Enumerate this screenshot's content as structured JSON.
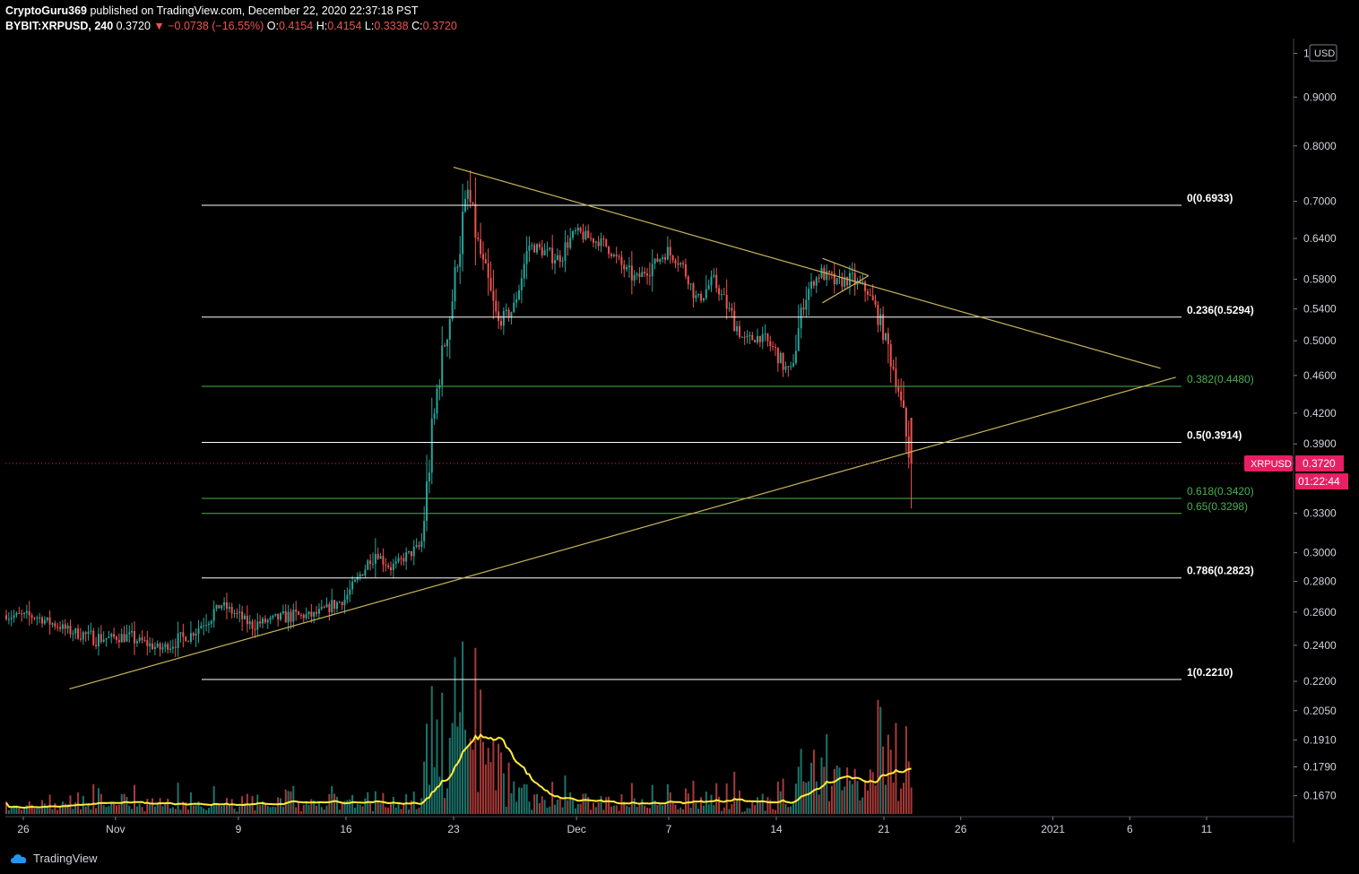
{
  "header": {
    "author": "CryptoGuru369",
    "published_text": "published on TradingView.com, December 22, 2020 22:37:18 PST",
    "symbol": "BYBIT:XRPUSD, 240",
    "last": "0.3720",
    "change": "−0.0738 (−16.55%)",
    "open_label": "O:",
    "open": "0.4154",
    "high_label": "H:",
    "high": "0.4154",
    "low_label": "L:",
    "low": "0.3338",
    "close_label": "C:",
    "close": "0.3720"
  },
  "footer": {
    "brand": "TradingView"
  },
  "colors": {
    "bull": "#26a69a",
    "bear": "#ef5350",
    "trendline": "#c8b45a",
    "fib_white": "#ffffff",
    "fib_green": "#4caf50",
    "volume_ma": "#ffeb3b",
    "price_badge": "#e91e63"
  },
  "chart_data": {
    "type": "candlestick",
    "symbol": "XRPUSD",
    "interval": "240",
    "currency": "USD",
    "y_scale": "log",
    "last_price": "0.3720",
    "countdown": "01:22:44",
    "y_ticks": [
      "1",
      "0.9000",
      "0.8000",
      "0.7000",
      "0.6400",
      "0.5800",
      "0.5400",
      "0.5000",
      "0.4600",
      "0.4200",
      "0.3900",
      "0.3300",
      "0.3000",
      "0.2800",
      "0.2600",
      "0.2400",
      "0.2200",
      "0.2050",
      "0.1910",
      "0.1790",
      "0.1670"
    ],
    "x_ticks": [
      "26",
      "Nov",
      "9",
      "16",
      "23",
      "Dec",
      "7",
      "14",
      "21",
      "26",
      "2021",
      "6",
      "11"
    ],
    "fib_levels": [
      {
        "label": "0(0.6933)",
        "value": 0.6933,
        "color": "white"
      },
      {
        "label": "0.236(0.5294)",
        "value": 0.5294,
        "color": "white"
      },
      {
        "label": "0.382(0.4480)",
        "value": 0.448,
        "color": "green"
      },
      {
        "label": "0.5(0.3914)",
        "value": 0.3914,
        "color": "white"
      },
      {
        "label": "0.618(0.3420)",
        "value": 0.342,
        "color": "green"
      },
      {
        "label": "0.65(0.3298)",
        "value": 0.3298,
        "color": "green"
      },
      {
        "label": "0.786(0.2823)",
        "value": 0.2823,
        "color": "white"
      },
      {
        "label": "1(0.2210)",
        "value": 0.221,
        "color": "white"
      }
    ],
    "price_path": [
      [
        "2020-10-25",
        0.258
      ],
      [
        "2020-10-27",
        0.257
      ],
      [
        "2020-10-29",
        0.249
      ],
      [
        "2020-10-31",
        0.244
      ],
      [
        "2020-11-02",
        0.245
      ],
      [
        "2020-11-04",
        0.238
      ],
      [
        "2020-11-06",
        0.246
      ],
      [
        "2020-11-08",
        0.265
      ],
      [
        "2020-11-10",
        0.252
      ],
      [
        "2020-11-12",
        0.257
      ],
      [
        "2020-11-14",
        0.258
      ],
      [
        "2020-11-16",
        0.268
      ],
      [
        "2020-11-18",
        0.301
      ],
      [
        "2020-11-19",
        0.289
      ],
      [
        "2020-11-21",
        0.305
      ],
      [
        "2020-11-22",
        0.44
      ],
      [
        "2020-11-23",
        0.55
      ],
      [
        "2020-11-24",
        0.72
      ],
      [
        "2020-11-25",
        0.6
      ],
      [
        "2020-11-26",
        0.52
      ],
      [
        "2020-11-27",
        0.54
      ],
      [
        "2020-11-28",
        0.63
      ],
      [
        "2020-11-30",
        0.61
      ],
      [
        "2020-12-01",
        0.65
      ],
      [
        "2020-12-03",
        0.63
      ],
      [
        "2020-12-04",
        0.6
      ],
      [
        "2020-12-05",
        0.58
      ],
      [
        "2020-12-07",
        0.62
      ],
      [
        "2020-12-08",
        0.6
      ],
      [
        "2020-12-09",
        0.55
      ],
      [
        "2020-12-10",
        0.58
      ],
      [
        "2020-12-11",
        0.54
      ],
      [
        "2020-12-12",
        0.5
      ],
      [
        "2020-12-13",
        0.505
      ],
      [
        "2020-12-14",
        0.49
      ],
      [
        "2020-12-15",
        0.46
      ],
      [
        "2020-12-16",
        0.56
      ],
      [
        "2020-12-17",
        0.59
      ],
      [
        "2020-12-18",
        0.575
      ],
      [
        "2020-12-19",
        0.58
      ],
      [
        "2020-12-20",
        0.565
      ],
      [
        "2020-12-21",
        0.52
      ],
      [
        "2020-12-22",
        0.45
      ],
      [
        "2020-12-22T20:00",
        0.372
      ]
    ],
    "volume_spike_dates": [
      "2020-11-23",
      "2020-11-25",
      "2020-12-17",
      "2020-12-21"
    ],
    "trendlines": [
      {
        "name": "upper",
        "from": [
          "2020-11-23",
          0.76
        ],
        "to": [
          "2021-01-08",
          0.468
        ]
      },
      {
        "name": "lower",
        "from": [
          "2020-10-29",
          0.216
        ],
        "to": [
          "2021-01-09",
          0.458
        ]
      },
      {
        "name": "pennant-top",
        "from": [
          "2020-12-17",
          0.61
        ],
        "to": [
          "2020-12-20",
          0.585
        ]
      },
      {
        "name": "pennant-bottom",
        "from": [
          "2020-12-17",
          0.548
        ],
        "to": [
          "2020-12-20",
          0.585
        ]
      }
    ]
  }
}
